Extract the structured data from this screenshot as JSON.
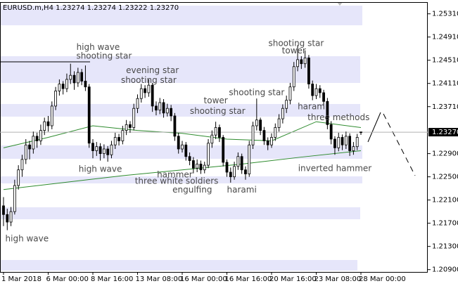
{
  "chart_data": {
    "type": "candlestick",
    "title": "EURUSD.m,H4  1.23274 1.23274 1.23222 1.23270",
    "categories": [
      "1 Mar 2018",
      null,
      null,
      null,
      null,
      null,
      null,
      null,
      null,
      null,
      null,
      null,
      "6 Mar 00:00",
      null,
      null,
      null,
      null,
      null,
      null,
      null,
      null,
      null,
      null,
      null,
      "8 Mar 16:00",
      null,
      null,
      null,
      null,
      null,
      null,
      null,
      null,
      null,
      null,
      null,
      "13 Mar 08:00",
      null,
      null,
      null,
      null,
      null,
      null,
      null,
      null,
      null,
      null,
      null,
      "16 Mar 00:00",
      null,
      null,
      null,
      null,
      null,
      null,
      null,
      null,
      null,
      null,
      null,
      "16 Mar 16:00",
      null,
      null,
      null,
      null,
      null,
      null,
      null,
      null,
      null,
      null,
      null,
      "20 Mar 16:00",
      null,
      null,
      null,
      null,
      null,
      null,
      null,
      null,
      null,
      null,
      null,
      "23 Mar 08:00",
      null,
      null,
      null,
      null,
      null,
      null,
      null,
      null,
      null,
      null,
      null,
      "28 Mar 00:00"
    ],
    "candles": [
      [
        1.22,
        1.2215,
        1.2165,
        1.2185
      ],
      [
        1.2185,
        1.2195,
        1.2158,
        1.2172
      ],
      [
        1.2172,
        1.2198,
        1.2165,
        1.219
      ],
      [
        1.219,
        1.2245,
        1.2185,
        1.2235
      ],
      [
        1.2235,
        1.227,
        1.2228,
        1.2262
      ],
      [
        1.2262,
        1.2288,
        1.225,
        1.228
      ],
      [
        1.228,
        1.2315,
        1.2272,
        1.2305
      ],
      [
        1.2305,
        1.2312,
        1.228,
        1.2298
      ],
      [
        1.2298,
        1.2328,
        1.229,
        1.232
      ],
      [
        1.232,
        1.2326,
        1.23,
        1.2312
      ],
      [
        1.2312,
        1.234,
        1.2305,
        1.233
      ],
      [
        1.233,
        1.2352,
        1.2322,
        1.2345
      ],
      [
        1.2345,
        1.2355,
        1.2328,
        1.2338
      ],
      [
        1.2338,
        1.238,
        1.2332,
        1.2372
      ],
      [
        1.2372,
        1.2405,
        1.2365,
        1.2398
      ],
      [
        1.2398,
        1.2418,
        1.239,
        1.241
      ],
      [
        1.241,
        1.2415,
        1.2392,
        1.2402
      ],
      [
        1.2402,
        1.2428,
        1.2396,
        1.2418
      ],
      [
        1.2418,
        1.2445,
        1.241,
        1.2425
      ],
      [
        1.2425,
        1.2432,
        1.24,
        1.2412
      ],
      [
        1.2412,
        1.2438,
        1.2405,
        1.243
      ],
      [
        1.243,
        1.2436,
        1.2408,
        1.2415
      ],
      [
        1.2415,
        1.2442,
        1.2398,
        1.2405
      ],
      [
        1.2405,
        1.241,
        1.23,
        1.2308
      ],
      [
        1.2308,
        1.2315,
        1.2282,
        1.2295
      ],
      [
        1.2295,
        1.231,
        1.2286,
        1.2302
      ],
      [
        1.2302,
        1.2308,
        1.2278,
        1.229
      ],
      [
        1.229,
        1.2306,
        1.2282,
        1.2298
      ],
      [
        1.2298,
        1.2303,
        1.2276,
        1.2288
      ],
      [
        1.2288,
        1.2312,
        1.2282,
        1.2305
      ],
      [
        1.2305,
        1.2326,
        1.2298,
        1.2318
      ],
      [
        1.2318,
        1.2324,
        1.2304,
        1.2312
      ],
      [
        1.2312,
        1.2338,
        1.2306,
        1.233
      ],
      [
        1.233,
        1.2348,
        1.2322,
        1.234
      ],
      [
        1.234,
        1.2346,
        1.2326,
        1.2335
      ],
      [
        1.2335,
        1.2376,
        1.233,
        1.2368
      ],
      [
        1.2368,
        1.2392,
        1.236,
        1.2385
      ],
      [
        1.2385,
        1.241,
        1.2378,
        1.2402
      ],
      [
        1.2402,
        1.2408,
        1.2386,
        1.2395
      ],
      [
        1.2395,
        1.2418,
        1.2388,
        1.2408
      ],
      [
        1.2408,
        1.2412,
        1.2362,
        1.2372
      ],
      [
        1.2372,
        1.238,
        1.2356,
        1.2365
      ],
      [
        1.2365,
        1.2386,
        1.2358,
        1.2378
      ],
      [
        1.2378,
        1.2384,
        1.2352,
        1.236
      ],
      [
        1.236,
        1.2376,
        1.2354,
        1.2368
      ],
      [
        1.2368,
        1.2374,
        1.2346,
        1.2355
      ],
      [
        1.2355,
        1.236,
        1.2312,
        1.232
      ],
      [
        1.232,
        1.2326,
        1.229,
        1.2298
      ],
      [
        1.2298,
        1.2312,
        1.2292,
        1.2305
      ],
      [
        1.2305,
        1.231,
        1.2278,
        1.2285
      ],
      [
        1.2285,
        1.2292,
        1.227,
        1.2278
      ],
      [
        1.2278,
        1.2284,
        1.2256,
        1.2265
      ],
      [
        1.2265,
        1.228,
        1.2258,
        1.2272
      ],
      [
        1.2272,
        1.2278,
        1.2255,
        1.2262
      ],
      [
        1.2262,
        1.2276,
        1.2256,
        1.227
      ],
      [
        1.227,
        1.2315,
        1.2265,
        1.2308
      ],
      [
        1.2308,
        1.233,
        1.23,
        1.2322
      ],
      [
        1.2322,
        1.2345,
        1.2315,
        1.2335
      ],
      [
        1.2335,
        1.234,
        1.231,
        1.2318
      ],
      [
        1.2318,
        1.2322,
        1.2268,
        1.2275
      ],
      [
        1.2275,
        1.228,
        1.225,
        1.2258
      ],
      [
        1.2258,
        1.2266,
        1.224,
        1.225
      ],
      [
        1.225,
        1.2276,
        1.2245,
        1.2268
      ],
      [
        1.2268,
        1.2292,
        1.2262,
        1.2285
      ],
      [
        1.2285,
        1.229,
        1.2255,
        1.2262
      ],
      [
        1.2262,
        1.2268,
        1.2245,
        1.2255
      ],
      [
        1.2255,
        1.2312,
        1.225,
        1.2305
      ],
      [
        1.2305,
        1.2345,
        1.2298,
        1.2338
      ],
      [
        1.2338,
        1.2385,
        1.233,
        1.2348
      ],
      [
        1.2348,
        1.2352,
        1.2322,
        1.233
      ],
      [
        1.233,
        1.2336,
        1.2305,
        1.2312
      ],
      [
        1.2312,
        1.2318,
        1.2296,
        1.2305
      ],
      [
        1.2305,
        1.2325,
        1.23,
        1.2318
      ],
      [
        1.2318,
        1.2342,
        1.2312,
        1.2335
      ],
      [
        1.2335,
        1.2358,
        1.2328,
        1.235
      ],
      [
        1.235,
        1.2375,
        1.2342,
        1.2368
      ],
      [
        1.2368,
        1.239,
        1.236,
        1.2382
      ],
      [
        1.2382,
        1.2412,
        1.2375,
        1.2405
      ],
      [
        1.2405,
        1.2448,
        1.2398,
        1.244
      ],
      [
        1.244,
        1.2477,
        1.2432,
        1.2452
      ],
      [
        1.2452,
        1.2458,
        1.2436,
        1.2445
      ],
      [
        1.2445,
        1.2468,
        1.2438,
        1.2455
      ],
      [
        1.2455,
        1.246,
        1.2402,
        1.241
      ],
      [
        1.241,
        1.2416,
        1.2382,
        1.239
      ],
      [
        1.239,
        1.241,
        1.2384,
        1.2402
      ],
      [
        1.2402,
        1.2408,
        1.2386,
        1.2395
      ],
      [
        1.2395,
        1.24,
        1.2372,
        1.238
      ],
      [
        1.238,
        1.2386,
        1.2332,
        1.234
      ],
      [
        1.234,
        1.2346,
        1.2306,
        1.2315
      ],
      [
        1.2315,
        1.232,
        1.2288,
        1.23
      ],
      [
        1.23,
        1.2326,
        1.2294,
        1.2318
      ],
      [
        1.2318,
        1.2323,
        1.2296,
        1.2305
      ],
      [
        1.2305,
        1.2328,
        1.2298,
        1.232
      ],
      [
        1.232,
        1.2325,
        1.2286,
        1.2295
      ],
      [
        1.2295,
        1.231,
        1.2288,
        1.2302
      ],
      [
        1.2302,
        1.2324,
        1.2296,
        1.2318
      ],
      [
        1.23274,
        1.23274,
        1.23222,
        1.2327
      ]
    ],
    "moving_averages": [
      {
        "color": "#2e8b2e",
        "x": [
          0,
          16,
          32,
          48,
          64,
          80,
          96
        ],
        "values": [
          1.2228,
          1.224,
          1.2252,
          1.2262,
          1.2272,
          1.2284,
          1.2295
        ]
      },
      {
        "color": "#2e8b2e",
        "x": [
          0,
          12,
          24,
          36,
          48,
          60,
          72,
          84,
          96
        ],
        "values": [
          1.23,
          1.2318,
          1.2338,
          1.233,
          1.2325,
          1.2315,
          1.2312,
          1.2345,
          1.2335
        ]
      }
    ],
    "annotations": [
      {
        "text": "high wave",
        "x": 6.3,
        "y": 1.2143
      },
      {
        "text": "high wave",
        "x": 25.4,
        "y": 1.2473
      },
      {
        "text": "shooting star",
        "x": 27,
        "y": 1.2458
      },
      {
        "text": "high wave",
        "x": 26,
        "y": 1.2263
      },
      {
        "text": "evening star",
        "x": 40,
        "y": 1.2433
      },
      {
        "text": "shooting star",
        "x": 39,
        "y": 1.2416
      },
      {
        "text": "tower",
        "x": 57,
        "y": 1.2381
      },
      {
        "text": "shooting star",
        "x": 57.5,
        "y": 1.2363
      },
      {
        "text": "hammer",
        "x": 46,
        "y": 1.2253
      },
      {
        "text": "three white soldiers",
        "x": 46.5,
        "y": 1.2242
      },
      {
        "text": "engulfing",
        "x": 50.7,
        "y": 1.2227
      },
      {
        "text": "harami",
        "x": 64,
        "y": 1.2227
      },
      {
        "text": "shooting star",
        "x": 68,
        "y": 1.2395
      },
      {
        "text": "shooting star",
        "x": 78.6,
        "y": 1.248
      },
      {
        "text": "tower",
        "x": 78,
        "y": 1.2467
      },
      {
        "text": "harami",
        "x": 83,
        "y": 1.2371
      },
      {
        "text": "three methods",
        "x": 90,
        "y": 1.2352
      },
      {
        "text": "inverted hammer",
        "x": 89,
        "y": 1.2264
      }
    ],
    "current_price": {
      "value": 1.2327,
      "label": "1.23270"
    },
    "ylim": [
      1.2086,
      1.255
    ],
    "yticks": [
      {
        "value": 1.2531,
        "label": "1.25310"
      },
      {
        "value": 1.2491,
        "label": "1.24910"
      },
      {
        "value": 1.2451,
        "label": "1.24510"
      },
      {
        "value": 1.2411,
        "label": "1.24110"
      },
      {
        "value": 1.2371,
        "label": "1.23710"
      },
      {
        "value": 1.229,
        "label": "1.22900"
      },
      {
        "value": 1.225,
        "label": "1.22500"
      },
      {
        "value": 1.221,
        "label": "1.22100"
      },
      {
        "value": 1.217,
        "label": "1.21700"
      },
      {
        "value": 1.213,
        "label": "1.21300"
      },
      {
        "value": 1.209,
        "label": "1.20900"
      }
    ]
  }
}
